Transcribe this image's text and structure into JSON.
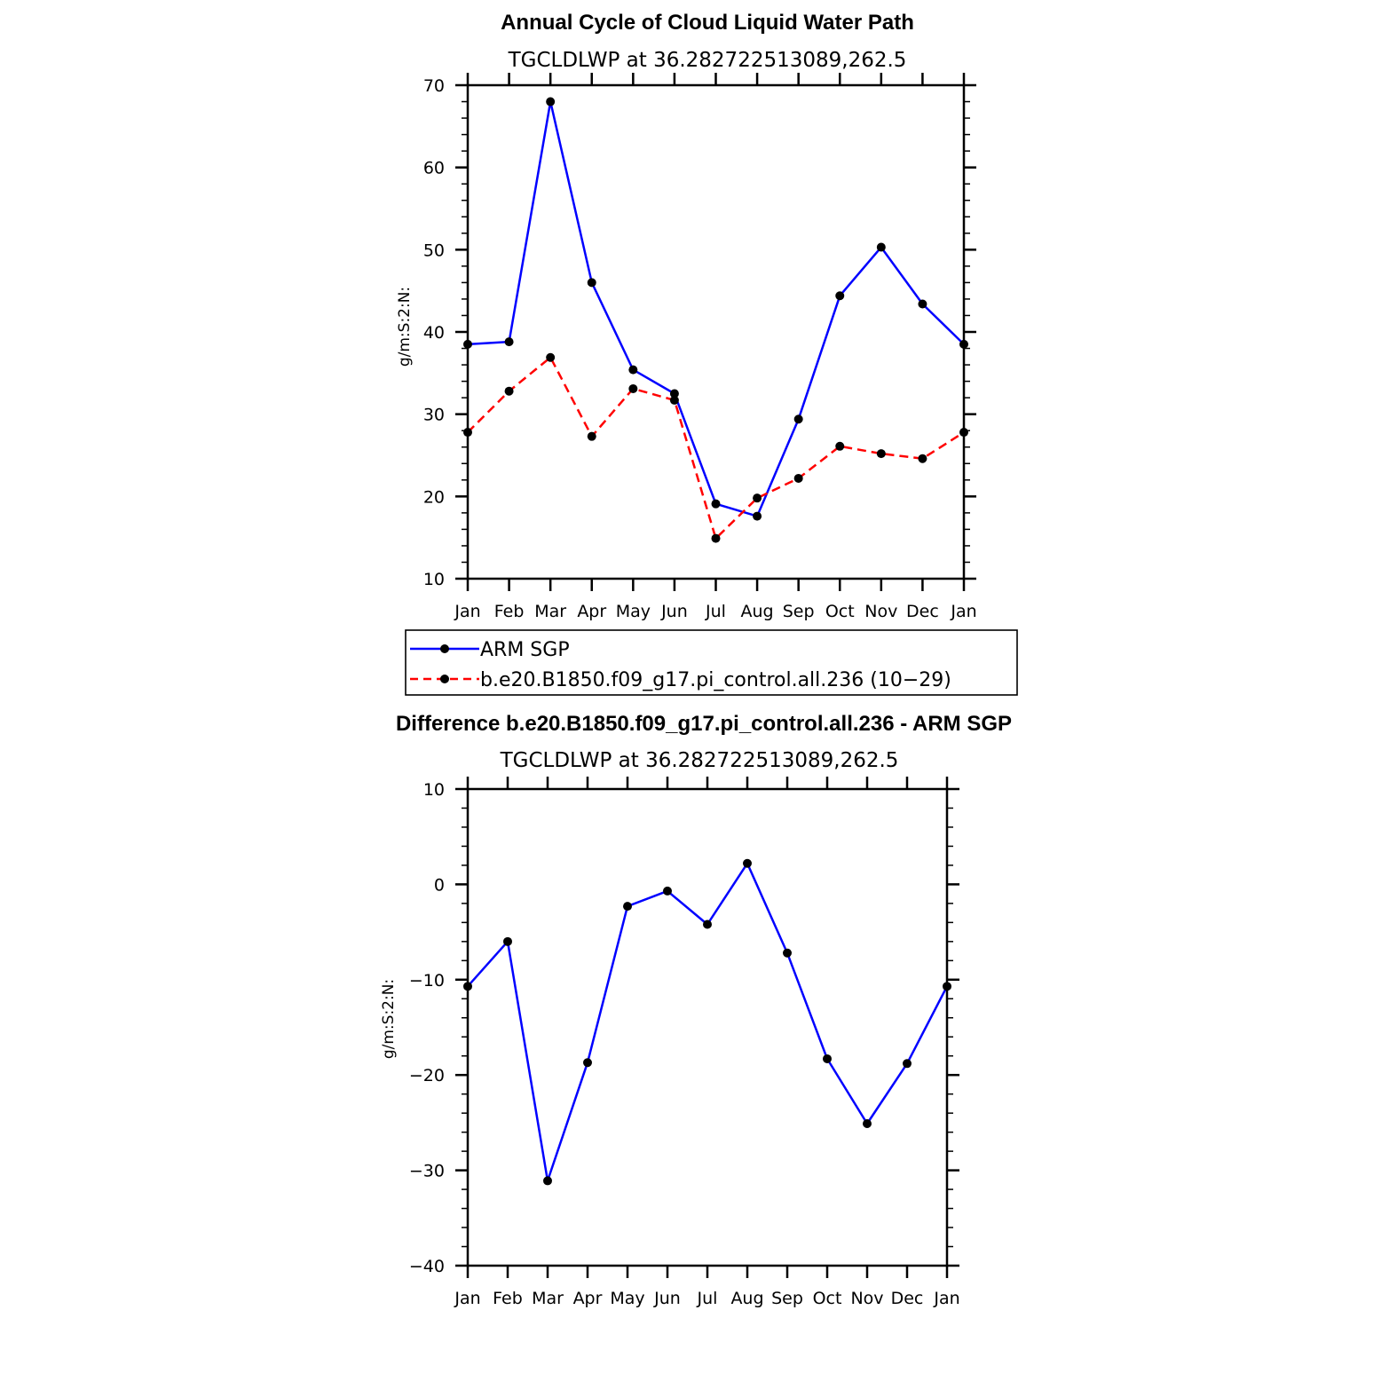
{
  "chart_data": [
    {
      "type": "line",
      "title": "Annual Cycle of Cloud Liquid Water Path",
      "subtitle": "TGCLDLWP  at  36.282722513089,262.5",
      "ylabel": "g/m:S:2:N:",
      "xlabel": "",
      "categories": [
        "Jan",
        "Feb",
        "Mar",
        "Apr",
        "May",
        "Jun",
        "Jul",
        "Aug",
        "Sep",
        "Oct",
        "Nov",
        "Dec",
        "Jan"
      ],
      "ylim": [
        10,
        70
      ],
      "yticks": [
        10,
        20,
        30,
        40,
        50,
        60,
        70
      ],
      "ytick_labels": [
        "10",
        "20",
        "30",
        "40",
        "50",
        "60",
        "70"
      ],
      "series": [
        {
          "name": "ARM SGP",
          "color": "#0000ff",
          "dashed": false,
          "values": [
            38.5,
            38.8,
            68.0,
            46.0,
            35.4,
            32.5,
            19.1,
            17.6,
            29.4,
            44.4,
            50.3,
            43.4,
            38.5
          ]
        },
        {
          "name": "b.e20.B1850.f09_g17.pi_control.all.236 (10−29)",
          "color": "#ff0000",
          "dashed": true,
          "values": [
            27.8,
            32.8,
            36.9,
            27.3,
            33.1,
            31.7,
            14.9,
            19.8,
            22.2,
            26.1,
            25.2,
            24.6,
            27.8
          ]
        }
      ],
      "legend": "bottom"
    },
    {
      "type": "line",
      "title": "Difference b.e20.B1850.f09_g17.pi_control.all.236 - ARM SGP",
      "subtitle": "TGCLDLWP  at  36.282722513089,262.5",
      "ylabel": "g/m:S:2:N:",
      "xlabel": "",
      "categories": [
        "Jan",
        "Feb",
        "Mar",
        "Apr",
        "May",
        "Jun",
        "Jul",
        "Aug",
        "Sep",
        "Oct",
        "Nov",
        "Dec",
        "Jan"
      ],
      "ylim": [
        -40,
        10
      ],
      "yticks": [
        -40,
        -30,
        -20,
        -10,
        0,
        10
      ],
      "ytick_labels": [
        "−40",
        "−30",
        "−20",
        "−10",
        "0",
        "10"
      ],
      "series": [
        {
          "name": "Difference",
          "color": "#0000ff",
          "dashed": false,
          "values": [
            -10.7,
            -6.0,
            -31.1,
            -18.7,
            -2.3,
            -0.7,
            -4.2,
            2.2,
            -7.2,
            -18.3,
            -25.1,
            -18.8,
            -10.7
          ]
        }
      ]
    }
  ]
}
